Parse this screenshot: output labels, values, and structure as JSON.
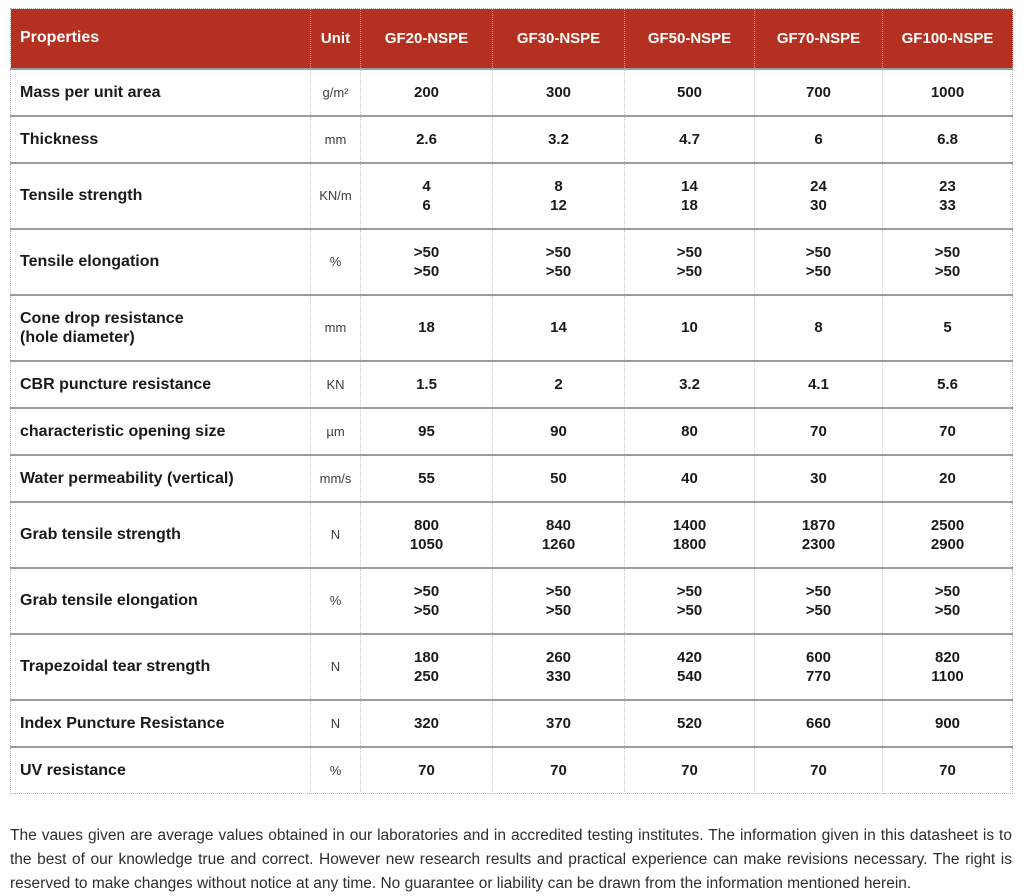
{
  "colors": {
    "header_bg": "#b43122",
    "header_text": "#ffffff",
    "row_divider": "#9b9b9b"
  },
  "table": {
    "columns": [
      "Properties",
      "Unit",
      "GF20-NSPE",
      "GF30-NSPE",
      "GF50-NSPE",
      "GF70-NSPE",
      "GF100-NSPE"
    ],
    "rows": [
      {
        "property": "Mass per unit area",
        "unit": "g/m²",
        "values": [
          "200",
          "300",
          "500",
          "700",
          "1000"
        ]
      },
      {
        "property": "Thickness",
        "unit": "mm",
        "values": [
          "2.6",
          "3.2",
          "4.7",
          "6",
          "6.8"
        ]
      },
      {
        "property": "Tensile strength",
        "unit": "KN/m",
        "values": [
          "4\n6",
          "8\n12",
          "14\n18",
          "24\n30",
          "23\n33"
        ]
      },
      {
        "property": "Tensile elongation",
        "unit": "%",
        "values": [
          ">50\n>50",
          ">50\n>50",
          ">50\n>50",
          ">50\n>50",
          ">50\n>50"
        ]
      },
      {
        "property": "Cone drop resistance\n(hole diameter)",
        "unit": "mm",
        "values": [
          "18",
          "14",
          "10",
          "8",
          "5"
        ]
      },
      {
        "property": "CBR puncture resistance",
        "unit": "KN",
        "values": [
          "1.5",
          "2",
          "3.2",
          "4.1",
          "5.6"
        ]
      },
      {
        "property": "characteristic opening size",
        "unit": "µm",
        "values": [
          "95",
          "90",
          "80",
          "70",
          "70"
        ]
      },
      {
        "property": "Water permeability (vertical)",
        "unit": "mm/s",
        "values": [
          "55",
          "50",
          "40",
          "30",
          "20"
        ]
      },
      {
        "property": "Grab tensile strength",
        "unit": "N",
        "values": [
          "800\n1050",
          "840\n1260",
          "1400\n1800",
          "1870\n2300",
          "2500\n2900"
        ]
      },
      {
        "property": "Grab tensile elongation",
        "unit": "%",
        "values": [
          ">50\n>50",
          ">50\n>50",
          ">50\n>50",
          ">50\n>50",
          ">50\n>50"
        ]
      },
      {
        "property": "Trapezoidal tear strength",
        "unit": "N",
        "values": [
          "180\n250",
          "260\n330",
          "420\n540",
          "600\n770",
          "820\n1100"
        ]
      },
      {
        "property": "Index Puncture Resistance",
        "unit": "N",
        "values": [
          "320",
          "370",
          "520",
          "660",
          "900"
        ]
      },
      {
        "property": "UV resistance",
        "unit": "%",
        "values": [
          "70",
          "70",
          "70",
          "70",
          "70"
        ]
      }
    ]
  },
  "footer": {
    "disclaimer": "The vaues given are average values obtained in our laboratories and in accredited testing institutes. The information given in this datasheet is to the best of our knowledge true and correct. However new research results and practical experience can make revisions necessary. The right is reserved to make changes without notice at any time. No guarantee or liability can be drawn from the information mentioned herein."
  }
}
